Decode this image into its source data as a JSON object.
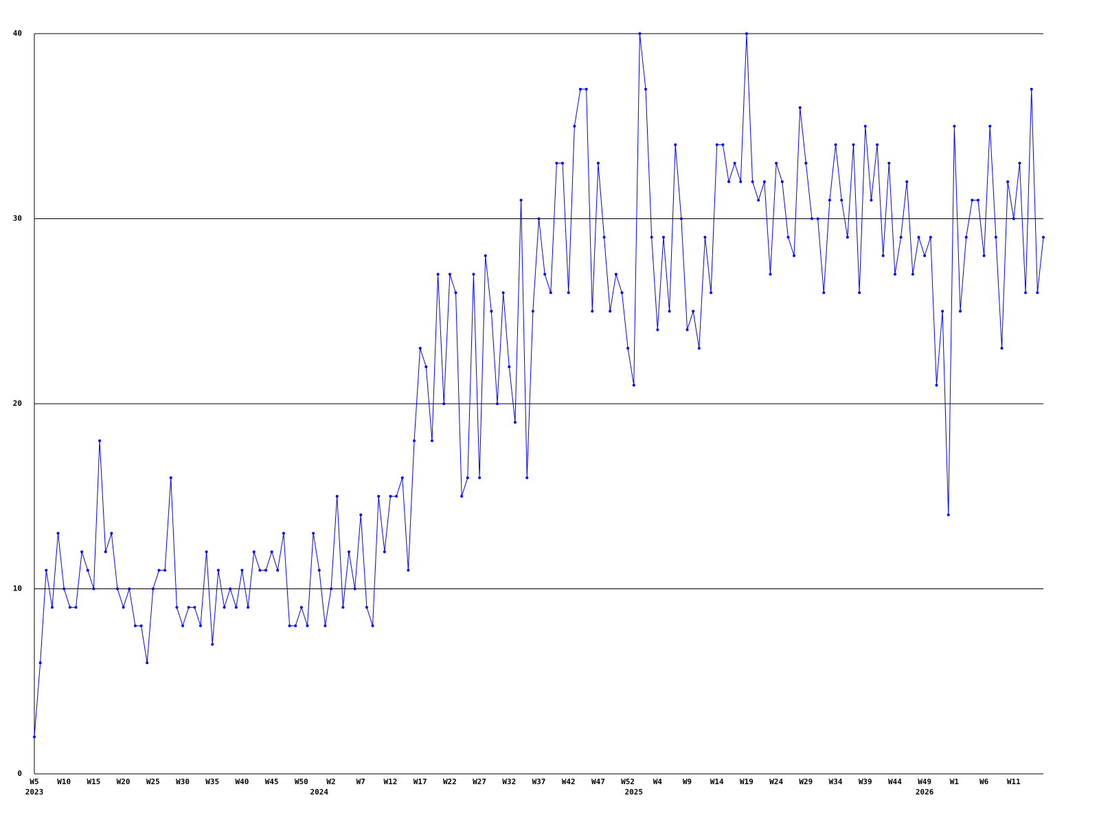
{
  "chart_data": {
    "type": "line",
    "categories": [
      "W5",
      null,
      null,
      null,
      null,
      "W10",
      null,
      null,
      null,
      null,
      "W15",
      null,
      null,
      null,
      null,
      "W20",
      null,
      null,
      null,
      null,
      "W25",
      null,
      null,
      null,
      null,
      "W30",
      null,
      null,
      null,
      null,
      "W35",
      null,
      null,
      null,
      null,
      "W40",
      null,
      null,
      null,
      null,
      "W45",
      null,
      null,
      null,
      null,
      "W50",
      null,
      null,
      null,
      null,
      "W2",
      null,
      null,
      null,
      null,
      "W7",
      null,
      null,
      null,
      null,
      "W12",
      null,
      null,
      null,
      null,
      "W17",
      null,
      null,
      null,
      null,
      "W22",
      null,
      null,
      null,
      null,
      "W27",
      null,
      null,
      null,
      null,
      "W32",
      null,
      null,
      null,
      null,
      "W37",
      null,
      null,
      null,
      null,
      "W42",
      null,
      null,
      null,
      null,
      "W47",
      null,
      null,
      null,
      null,
      "W52",
      null,
      null,
      null,
      null,
      "W4",
      null,
      null,
      null,
      null,
      "W9",
      null,
      null,
      null,
      null,
      "W14",
      null,
      null,
      null,
      null,
      "W19",
      null,
      null,
      null,
      null,
      "W24",
      null,
      null,
      null,
      null,
      "W29",
      null,
      null,
      null,
      null,
      "W34",
      null,
      null,
      null,
      null,
      "W39",
      null,
      null,
      null,
      null,
      "W44",
      null,
      null,
      null,
      null,
      "W49",
      null,
      null,
      null,
      null,
      "W1",
      null,
      null,
      null,
      null,
      "W6",
      null,
      null,
      null,
      null,
      "W11",
      null,
      null,
      null,
      null,
      null
    ],
    "years": [
      "2023",
      null,
      null,
      null,
      null,
      null,
      null,
      null,
      null,
      null,
      null,
      null,
      null,
      null,
      null,
      null,
      null,
      null,
      null,
      null,
      null,
      null,
      null,
      null,
      null,
      null,
      null,
      null,
      null,
      null,
      null,
      null,
      null,
      null,
      null,
      null,
      null,
      null,
      null,
      null,
      null,
      null,
      null,
      null,
      null,
      null,
      null,
      null,
      "2024",
      null,
      null,
      null,
      null,
      null,
      null,
      null,
      null,
      null,
      null,
      null,
      null,
      null,
      null,
      null,
      null,
      null,
      null,
      null,
      null,
      null,
      null,
      null,
      null,
      null,
      null,
      null,
      null,
      null,
      null,
      null,
      null,
      null,
      null,
      null,
      null,
      null,
      null,
      null,
      null,
      null,
      null,
      null,
      null,
      null,
      null,
      null,
      null,
      null,
      null,
      null,
      null,
      "2025",
      null,
      null,
      null,
      null,
      null,
      null,
      null,
      null,
      null,
      null,
      null,
      null,
      null,
      null,
      null,
      null,
      null,
      null,
      null,
      null,
      null,
      null,
      null,
      null,
      null,
      null,
      null,
      null,
      null,
      null,
      null,
      null,
      null,
      null,
      null,
      null,
      null,
      null,
      null,
      null,
      null,
      null,
      null,
      null,
      null,
      null,
      null,
      null,
      "2026",
      null,
      null,
      null,
      null,
      null,
      null,
      null,
      null,
      null,
      null,
      null,
      null,
      null,
      null,
      null,
      null
    ],
    "series": [
      {
        "color": "#0000ff",
        "values": [
          2,
          6,
          11,
          9,
          13,
          10,
          9,
          9,
          12,
          11,
          10,
          18,
          12,
          13,
          10,
          9,
          10,
          8,
          8,
          6,
          10,
          11,
          11,
          16,
          9,
          8,
          9,
          9,
          8,
          12,
          7,
          11,
          9,
          10,
          9,
          11,
          9,
          12,
          11,
          11,
          12,
          11,
          13,
          8,
          8,
          9,
          8,
          13,
          11,
          8,
          10,
          15,
          9,
          12,
          10,
          14,
          9,
          8,
          15,
          12,
          15,
          15,
          16,
          11,
          18,
          23,
          22,
          18,
          27,
          20,
          27,
          26,
          15,
          16,
          27,
          16,
          28,
          25,
          20,
          26,
          22,
          19,
          31,
          16,
          25,
          30,
          27,
          26,
          33,
          33,
          26,
          35,
          37,
          37,
          25,
          33,
          29,
          25,
          27,
          26,
          23,
          21,
          40,
          37,
          29,
          24,
          29,
          25,
          34,
          30,
          24,
          25,
          23,
          29,
          26,
          34,
          34,
          32,
          33,
          32,
          40,
          32,
          31,
          32,
          27,
          33,
          32,
          29,
          28,
          36,
          33,
          30,
          30,
          26,
          31,
          34,
          31,
          29,
          34,
          26,
          35,
          31,
          34,
          28,
          33,
          27,
          29,
          32,
          27,
          29,
          28,
          29,
          21,
          25,
          14,
          35,
          25,
          29,
          31,
          31,
          28,
          35,
          29,
          23,
          32,
          30,
          33,
          26,
          37,
          26,
          29
        ]
      }
    ],
    "ylim": [
      0,
      40
    ],
    "yticks": [
      0,
      10,
      20,
      30,
      40
    ],
    "grid": true
  }
}
